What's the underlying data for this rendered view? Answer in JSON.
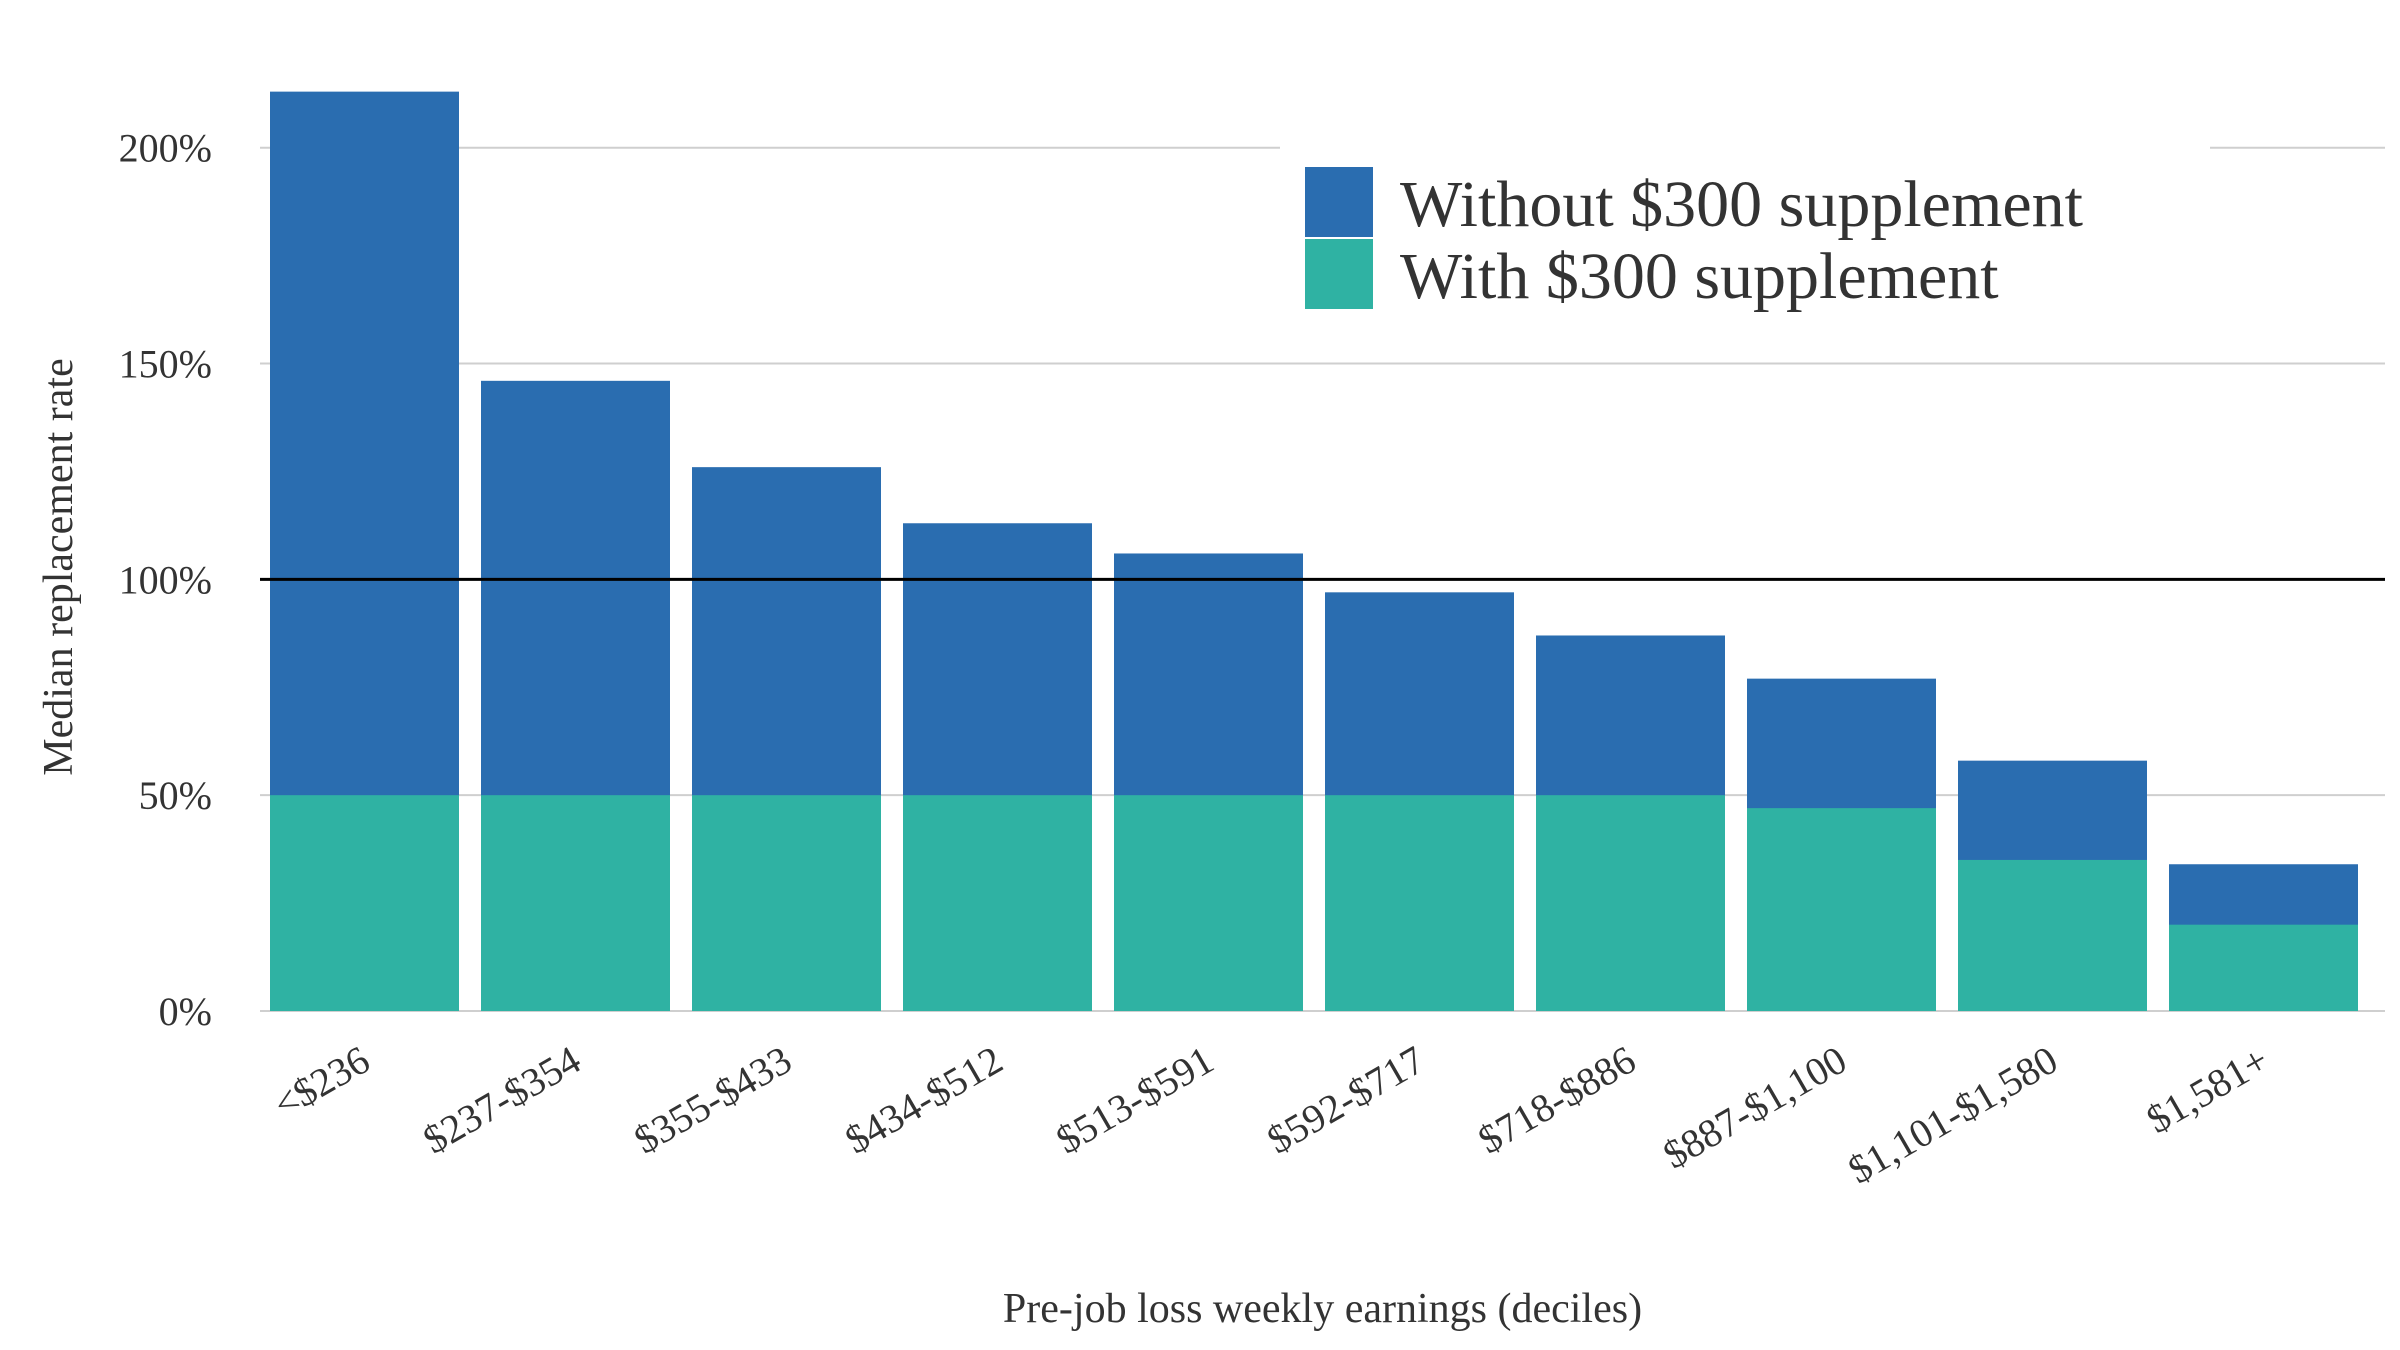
{
  "chart_data": {
    "type": "bar",
    "title": "",
    "xlabel": "Pre-job loss weekly earnings (deciles)",
    "ylabel": "Median replacement rate",
    "ylim": [
      0,
      215
    ],
    "yticks": [
      0,
      50,
      100,
      150,
      200
    ],
    "ytick_labels": [
      "0%",
      "50%",
      "100%",
      "150%",
      "200%"
    ],
    "reference_line": 100,
    "grid": "horizontal",
    "legend_position": "top-right",
    "categories": [
      "<$236",
      "$237-$354",
      "$355-$433",
      "$434-$512",
      "$513-$591",
      "$592-$717",
      "$718-$886",
      "$887-$1,100",
      "$1,101-$1,580",
      "$1,581+"
    ],
    "series": [
      {
        "name": "Without $300 supplement",
        "color": "#2a6db0",
        "values": [
          213,
          146,
          126,
          113,
          106,
          97,
          87,
          77,
          58,
          34
        ]
      },
      {
        "name": "With $300 supplement",
        "color": "#2fb2a3",
        "values": [
          50,
          50,
          50,
          50,
          50,
          50,
          50,
          47,
          35,
          20
        ]
      }
    ]
  }
}
